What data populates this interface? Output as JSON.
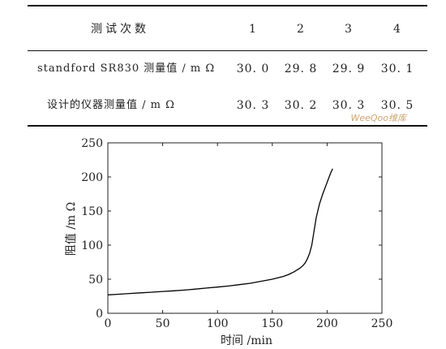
{
  "table": {
    "header_label": "测试次数",
    "trials": [
      "1",
      "2",
      "3",
      "4"
    ],
    "rows": [
      {
        "label": "standford SR830 测量值 / m Ω",
        "values": [
          "30. 0",
          "29. 8",
          "29. 9",
          "30. 1"
        ]
      },
      {
        "label": "设计的仪器测量值 / m Ω",
        "values": [
          "30. 3",
          "30. 2",
          "30. 3",
          "30. 5"
        ]
      }
    ],
    "watermark": "WeeQoo维库"
  },
  "chart_data": {
    "type": "line",
    "xlabel": "时间 /min",
    "ylabel": "阻值 /m Ω",
    "xlim": [
      0,
      250
    ],
    "ylim": [
      0,
      250
    ],
    "xticks": [
      "0",
      "50",
      "100",
      "150",
      "200",
      "250"
    ],
    "yticks": [
      "0",
      "50",
      "100",
      "150",
      "200",
      "250"
    ],
    "grid": false,
    "series": [
      {
        "color": "#000000",
        "x": [
          0,
          10,
          20,
          30,
          40,
          50,
          60,
          70,
          80,
          90,
          100,
          110,
          120,
          130,
          140,
          150,
          160,
          165,
          170,
          175,
          178,
          180,
          182,
          184,
          186,
          188,
          190,
          193,
          196,
          200,
          203,
          205
        ],
        "y": [
          27,
          28,
          29,
          30,
          31,
          32,
          33,
          34,
          35.5,
          37,
          38.5,
          40,
          42,
          44,
          47,
          50,
          54,
          57,
          61,
          66,
          70,
          74,
          80,
          88,
          100,
          120,
          140,
          160,
          175,
          192,
          205,
          212
        ]
      }
    ]
  }
}
